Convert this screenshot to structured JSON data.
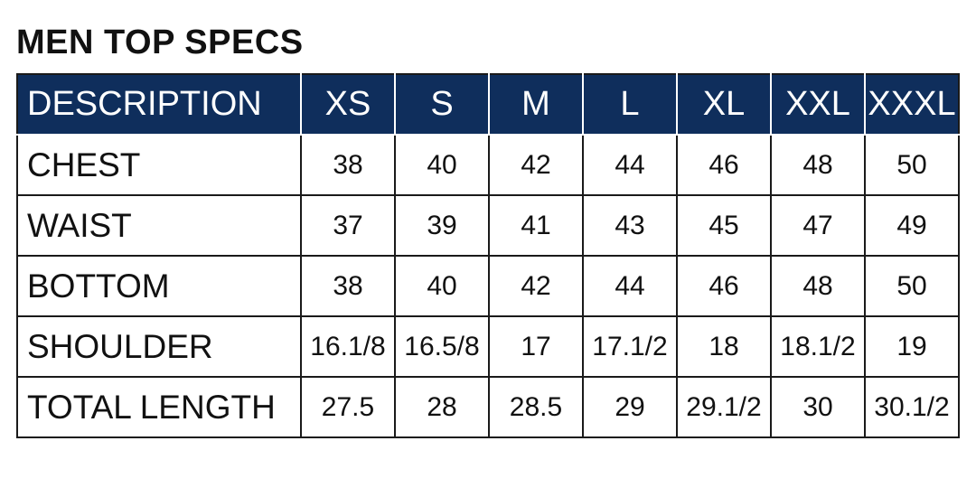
{
  "title": "MEN TOP SPECS",
  "header": {
    "description": "DESCRIPTION",
    "sizes": [
      "XS",
      "S",
      "M",
      "L",
      "XL",
      "XXL",
      "XXXL"
    ]
  },
  "rows": [
    {
      "label": "CHEST",
      "values": [
        "38",
        "40",
        "42",
        "44",
        "46",
        "48",
        "50"
      ]
    },
    {
      "label": "WAIST",
      "values": [
        "37",
        "39",
        "41",
        "43",
        "45",
        "47",
        "49"
      ]
    },
    {
      "label": "BOTTOM",
      "values": [
        "38",
        "40",
        "42",
        "44",
        "46",
        "48",
        "50"
      ]
    },
    {
      "label": "SHOULDER",
      "values": [
        "16.1/8",
        "16.5/8",
        "17",
        "17.1/2",
        "18",
        "18.1/2",
        "19"
      ]
    },
    {
      "label": "TOTAL LENGTH",
      "values": [
        "27.5",
        "28",
        "28.5",
        "29",
        "29.1/2",
        "30",
        "30.1/2"
      ]
    }
  ],
  "colors": {
    "header_bg": "#0f2e5c",
    "header_text": "#ffffff",
    "border": "#1a1a1a"
  }
}
